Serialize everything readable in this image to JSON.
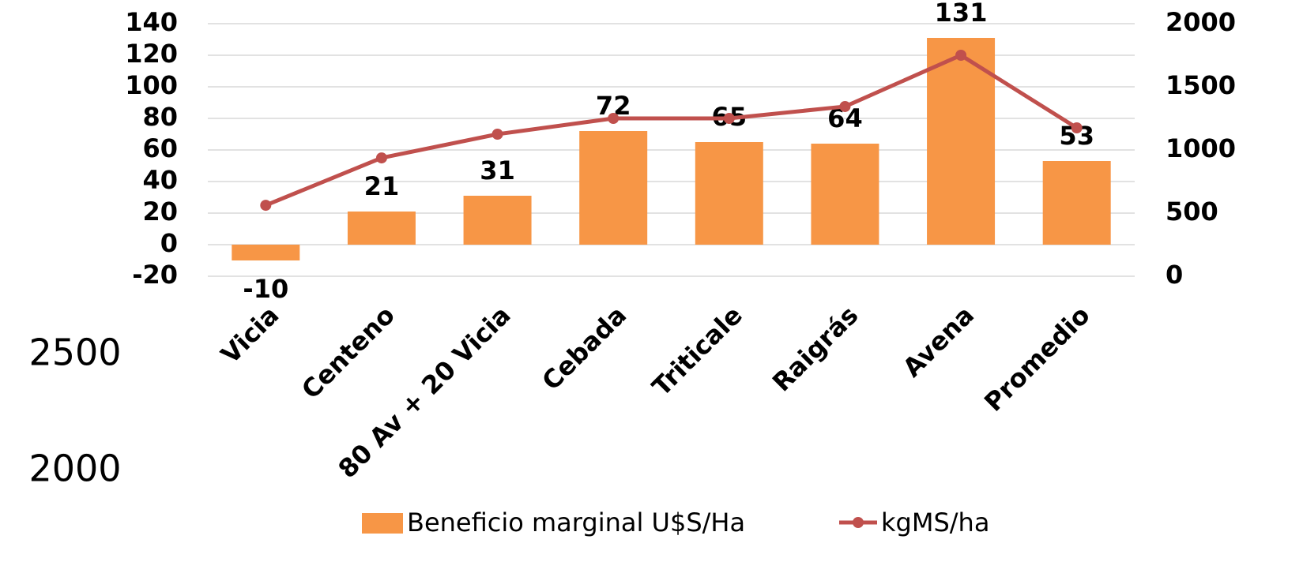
{
  "chart_data": {
    "type": "bar-line",
    "categories": [
      "Vicia",
      "Centeno",
      "80 Av + 20 Vicia",
      "Cebada",
      "Triticale",
      "Raigrás",
      "Avena",
      "Promedio"
    ],
    "series": [
      {
        "name": "Beneficio marginal U$S/Ha",
        "color": "#F79646",
        "type": "bar",
        "values": [
          -10,
          21,
          31,
          72,
          65,
          64,
          131,
          53
        ]
      },
      {
        "name": "kgMS/ha",
        "color": "#C0504D",
        "type": "line",
        "axis": "y2",
        "values": [
          562,
          937,
          1125,
          1250,
          1250,
          1344,
          1750,
          1175
        ]
      }
    ],
    "ylim": [
      -20,
      140
    ],
    "yticks": [
      -20,
      0,
      20,
      40,
      60,
      80,
      100,
      120,
      140
    ],
    "y2lim": [
      0,
      2000
    ],
    "y2ticks": [
      0,
      500,
      1000,
      1500,
      2000
    ],
    "grid": true,
    "legend": "bottom",
    "annotations": [
      "2500",
      "2000"
    ]
  }
}
